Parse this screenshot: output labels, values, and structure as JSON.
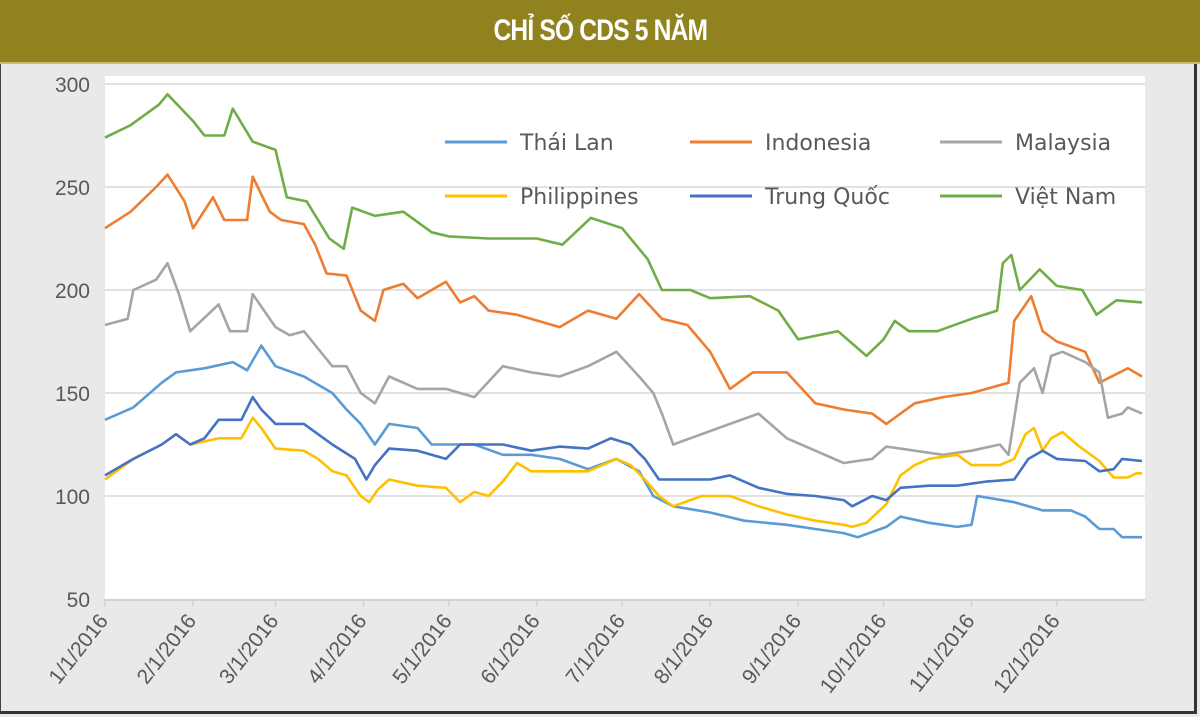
{
  "title": "CHỈ SỐ CDS 5 NĂM",
  "chart_data": {
    "type": "line",
    "title": "CHỈ SỐ CDS 5 NĂM",
    "xlabel": "",
    "ylabel": "",
    "x_unit": "days since 1/1/2016",
    "xlim": [
      0,
      365
    ],
    "ylim": [
      50,
      300
    ],
    "yticks": [
      50,
      100,
      150,
      200,
      250,
      300
    ],
    "xticks": [
      {
        "day": 0,
        "label": "1/1/2016"
      },
      {
        "day": 31,
        "label": "2/1/2016"
      },
      {
        "day": 60,
        "label": "3/1/2016"
      },
      {
        "day": 91,
        "label": "4/1/2016"
      },
      {
        "day": 121,
        "label": "5/1/2016"
      },
      {
        "day": 152,
        "label": "6/1/2016"
      },
      {
        "day": 182,
        "label": "7/1/2016"
      },
      {
        "day": 213,
        "label": "8/1/2016"
      },
      {
        "day": 244,
        "label": "9/1/2016"
      },
      {
        "day": 274,
        "label": "10/1/2016"
      },
      {
        "day": 305,
        "label": "11/1/2016"
      },
      {
        "day": 335,
        "label": "12/1/2016"
      }
    ],
    "grid": true,
    "legend_position": "top-right",
    "series": [
      {
        "name": "Thái Lan",
        "color": "#5B9BD5",
        "points": [
          [
            0,
            137
          ],
          [
            10,
            143
          ],
          [
            20,
            155
          ],
          [
            25,
            160
          ],
          [
            35,
            162
          ],
          [
            45,
            165
          ],
          [
            50,
            161
          ],
          [
            55,
            173
          ],
          [
            60,
            163
          ],
          [
            70,
            158
          ],
          [
            80,
            150
          ],
          [
            85,
            142
          ],
          [
            90,
            135
          ],
          [
            95,
            125
          ],
          [
            100,
            135
          ],
          [
            110,
            133
          ],
          [
            115,
            125
          ],
          [
            120,
            125
          ],
          [
            130,
            125
          ],
          [
            140,
            120
          ],
          [
            150,
            120
          ],
          [
            160,
            118
          ],
          [
            170,
            113
          ],
          [
            180,
            118
          ],
          [
            188,
            112
          ],
          [
            193,
            100
          ],
          [
            200,
            95
          ],
          [
            213,
            92
          ],
          [
            225,
            88
          ],
          [
            240,
            86
          ],
          [
            250,
            84
          ],
          [
            260,
            82
          ],
          [
            265,
            80
          ],
          [
            275,
            85
          ],
          [
            280,
            90
          ],
          [
            290,
            87
          ],
          [
            300,
            85
          ],
          [
            305,
            86
          ],
          [
            307,
            100
          ],
          [
            320,
            97
          ],
          [
            325,
            95
          ],
          [
            330,
            93
          ],
          [
            340,
            93
          ],
          [
            345,
            90
          ],
          [
            350,
            84
          ],
          [
            355,
            84
          ],
          [
            358,
            80
          ],
          [
            365,
            80
          ]
        ]
      },
      {
        "name": "Indonesia",
        "color": "#ED7D31",
        "points": [
          [
            0,
            230
          ],
          [
            9,
            238
          ],
          [
            18,
            250
          ],
          [
            22,
            256
          ],
          [
            28,
            243
          ],
          [
            31,
            230
          ],
          [
            38,
            245
          ],
          [
            42,
            234
          ],
          [
            50,
            234
          ],
          [
            52,
            255
          ],
          [
            58,
            238
          ],
          [
            62,
            234
          ],
          [
            70,
            232
          ],
          [
            74,
            222
          ],
          [
            78,
            208
          ],
          [
            85,
            207
          ],
          [
            90,
            190
          ],
          [
            95,
            185
          ],
          [
            98,
            200
          ],
          [
            105,
            203
          ],
          [
            110,
            196
          ],
          [
            120,
            204
          ],
          [
            125,
            194
          ],
          [
            130,
            197
          ],
          [
            135,
            190
          ],
          [
            145,
            188
          ],
          [
            160,
            182
          ],
          [
            170,
            190
          ],
          [
            180,
            186
          ],
          [
            188,
            198
          ],
          [
            196,
            186
          ],
          [
            205,
            183
          ],
          [
            213,
            170
          ],
          [
            220,
            152
          ],
          [
            228,
            160
          ],
          [
            240,
            160
          ],
          [
            250,
            145
          ],
          [
            260,
            142
          ],
          [
            270,
            140
          ],
          [
            275,
            135
          ],
          [
            285,
            145
          ],
          [
            295,
            148
          ],
          [
            305,
            150
          ],
          [
            318,
            155
          ],
          [
            320,
            185
          ],
          [
            326,
            197
          ],
          [
            330,
            180
          ],
          [
            335,
            175
          ],
          [
            345,
            170
          ],
          [
            350,
            155
          ],
          [
            360,
            162
          ],
          [
            365,
            158
          ]
        ]
      },
      {
        "name": "Malaysia",
        "color": "#A5A5A5",
        "points": [
          [
            0,
            183
          ],
          [
            8,
            186
          ],
          [
            10,
            200
          ],
          [
            18,
            205
          ],
          [
            22,
            213
          ],
          [
            26,
            198
          ],
          [
            30,
            180
          ],
          [
            40,
            193
          ],
          [
            44,
            180
          ],
          [
            50,
            180
          ],
          [
            52,
            198
          ],
          [
            60,
            182
          ],
          [
            65,
            178
          ],
          [
            70,
            180
          ],
          [
            80,
            163
          ],
          [
            85,
            163
          ],
          [
            90,
            150
          ],
          [
            95,
            145
          ],
          [
            100,
            158
          ],
          [
            110,
            152
          ],
          [
            120,
            152
          ],
          [
            130,
            148
          ],
          [
            140,
            163
          ],
          [
            150,
            160
          ],
          [
            160,
            158
          ],
          [
            170,
            163
          ],
          [
            180,
            170
          ],
          [
            188,
            158
          ],
          [
            193,
            150
          ],
          [
            196,
            140
          ],
          [
            200,
            125
          ],
          [
            210,
            130
          ],
          [
            220,
            135
          ],
          [
            230,
            140
          ],
          [
            240,
            128
          ],
          [
            250,
            122
          ],
          [
            260,
            116
          ],
          [
            270,
            118
          ],
          [
            275,
            124
          ],
          [
            285,
            122
          ],
          [
            295,
            120
          ],
          [
            305,
            122
          ],
          [
            315,
            125
          ],
          [
            318,
            120
          ],
          [
            322,
            155
          ],
          [
            327,
            162
          ],
          [
            330,
            150
          ],
          [
            333,
            168
          ],
          [
            337,
            170
          ],
          [
            345,
            165
          ],
          [
            350,
            160
          ],
          [
            353,
            138
          ],
          [
            358,
            140
          ],
          [
            360,
            143
          ],
          [
            365,
            140
          ]
        ]
      },
      {
        "name": "Philippines",
        "color": "#FFC000",
        "points": [
          [
            0,
            108
          ],
          [
            10,
            118
          ],
          [
            20,
            125
          ],
          [
            25,
            130
          ],
          [
            30,
            125
          ],
          [
            40,
            128
          ],
          [
            48,
            128
          ],
          [
            52,
            138
          ],
          [
            55,
            133
          ],
          [
            60,
            123
          ],
          [
            70,
            122
          ],
          [
            75,
            118
          ],
          [
            80,
            112
          ],
          [
            85,
            110
          ],
          [
            90,
            100
          ],
          [
            93,
            97
          ],
          [
            96,
            103
          ],
          [
            100,
            108
          ],
          [
            110,
            105
          ],
          [
            120,
            104
          ],
          [
            125,
            97
          ],
          [
            130,
            102
          ],
          [
            135,
            100
          ],
          [
            140,
            107
          ],
          [
            145,
            116
          ],
          [
            150,
            112
          ],
          [
            160,
            112
          ],
          [
            170,
            112
          ],
          [
            180,
            118
          ],
          [
            185,
            115
          ],
          [
            190,
            108
          ],
          [
            195,
            100
          ],
          [
            200,
            95
          ],
          [
            210,
            100
          ],
          [
            220,
            100
          ],
          [
            230,
            95
          ],
          [
            240,
            91
          ],
          [
            250,
            88
          ],
          [
            260,
            86
          ],
          [
            263,
            85
          ],
          [
            268,
            87
          ],
          [
            275,
            96
          ],
          [
            280,
            110
          ],
          [
            285,
            115
          ],
          [
            290,
            118
          ],
          [
            300,
            120
          ],
          [
            305,
            115
          ],
          [
            315,
            115
          ],
          [
            320,
            118
          ],
          [
            324,
            130
          ],
          [
            327,
            133
          ],
          [
            330,
            122
          ],
          [
            333,
            128
          ],
          [
            337,
            131
          ],
          [
            343,
            124
          ],
          [
            350,
            117
          ],
          [
            355,
            109
          ],
          [
            360,
            109
          ],
          [
            363,
            111
          ],
          [
            365,
            111
          ]
        ]
      },
      {
        "name": "Trung Quốc",
        "color": "#4472C4",
        "points": [
          [
            0,
            110
          ],
          [
            10,
            118
          ],
          [
            20,
            125
          ],
          [
            25,
            130
          ],
          [
            30,
            125
          ],
          [
            35,
            128
          ],
          [
            40,
            137
          ],
          [
            48,
            137
          ],
          [
            52,
            148
          ],
          [
            55,
            142
          ],
          [
            60,
            135
          ],
          [
            70,
            135
          ],
          [
            80,
            125
          ],
          [
            88,
            118
          ],
          [
            92,
            108
          ],
          [
            95,
            115
          ],
          [
            100,
            123
          ],
          [
            110,
            122
          ],
          [
            120,
            118
          ],
          [
            125,
            125
          ],
          [
            130,
            125
          ],
          [
            140,
            125
          ],
          [
            150,
            122
          ],
          [
            160,
            124
          ],
          [
            170,
            123
          ],
          [
            178,
            128
          ],
          [
            185,
            125
          ],
          [
            190,
            118
          ],
          [
            195,
            108
          ],
          [
            200,
            108
          ],
          [
            213,
            108
          ],
          [
            220,
            110
          ],
          [
            230,
            104
          ],
          [
            240,
            101
          ],
          [
            250,
            100
          ],
          [
            260,
            98
          ],
          [
            263,
            95
          ],
          [
            270,
            100
          ],
          [
            275,
            98
          ],
          [
            280,
            104
          ],
          [
            290,
            105
          ],
          [
            300,
            105
          ],
          [
            310,
            107
          ],
          [
            320,
            108
          ],
          [
            325,
            118
          ],
          [
            330,
            122
          ],
          [
            335,
            118
          ],
          [
            345,
            117
          ],
          [
            350,
            112
          ],
          [
            355,
            113
          ],
          [
            358,
            118
          ],
          [
            365,
            117
          ]
        ]
      },
      {
        "name": "Việt Nam",
        "color": "#70AD47",
        "points": [
          [
            0,
            274
          ],
          [
            9,
            280
          ],
          [
            19,
            290
          ],
          [
            22,
            295
          ],
          [
            31,
            282
          ],
          [
            35,
            275
          ],
          [
            42,
            275
          ],
          [
            45,
            288
          ],
          [
            52,
            272
          ],
          [
            60,
            268
          ],
          [
            64,
            245
          ],
          [
            71,
            243
          ],
          [
            79,
            225
          ],
          [
            84,
            220
          ],
          [
            87,
            240
          ],
          [
            95,
            236
          ],
          [
            105,
            238
          ],
          [
            115,
            228
          ],
          [
            121,
            226
          ],
          [
            135,
            225
          ],
          [
            152,
            225
          ],
          [
            161,
            222
          ],
          [
            171,
            235
          ],
          [
            182,
            230
          ],
          [
            191,
            215
          ],
          [
            196,
            200
          ],
          [
            206,
            200
          ],
          [
            213,
            196
          ],
          [
            227,
            197
          ],
          [
            237,
            190
          ],
          [
            244,
            176
          ],
          [
            258,
            180
          ],
          [
            268,
            168
          ],
          [
            274,
            176
          ],
          [
            278,
            185
          ],
          [
            283,
            180
          ],
          [
            293,
            180
          ],
          [
            305,
            186
          ],
          [
            314,
            190
          ],
          [
            316,
            213
          ],
          [
            319,
            217
          ],
          [
            322,
            200
          ],
          [
            329,
            210
          ],
          [
            335,
            202
          ],
          [
            344,
            200
          ],
          [
            349,
            188
          ],
          [
            356,
            195
          ],
          [
            365,
            194
          ]
        ]
      }
    ]
  }
}
